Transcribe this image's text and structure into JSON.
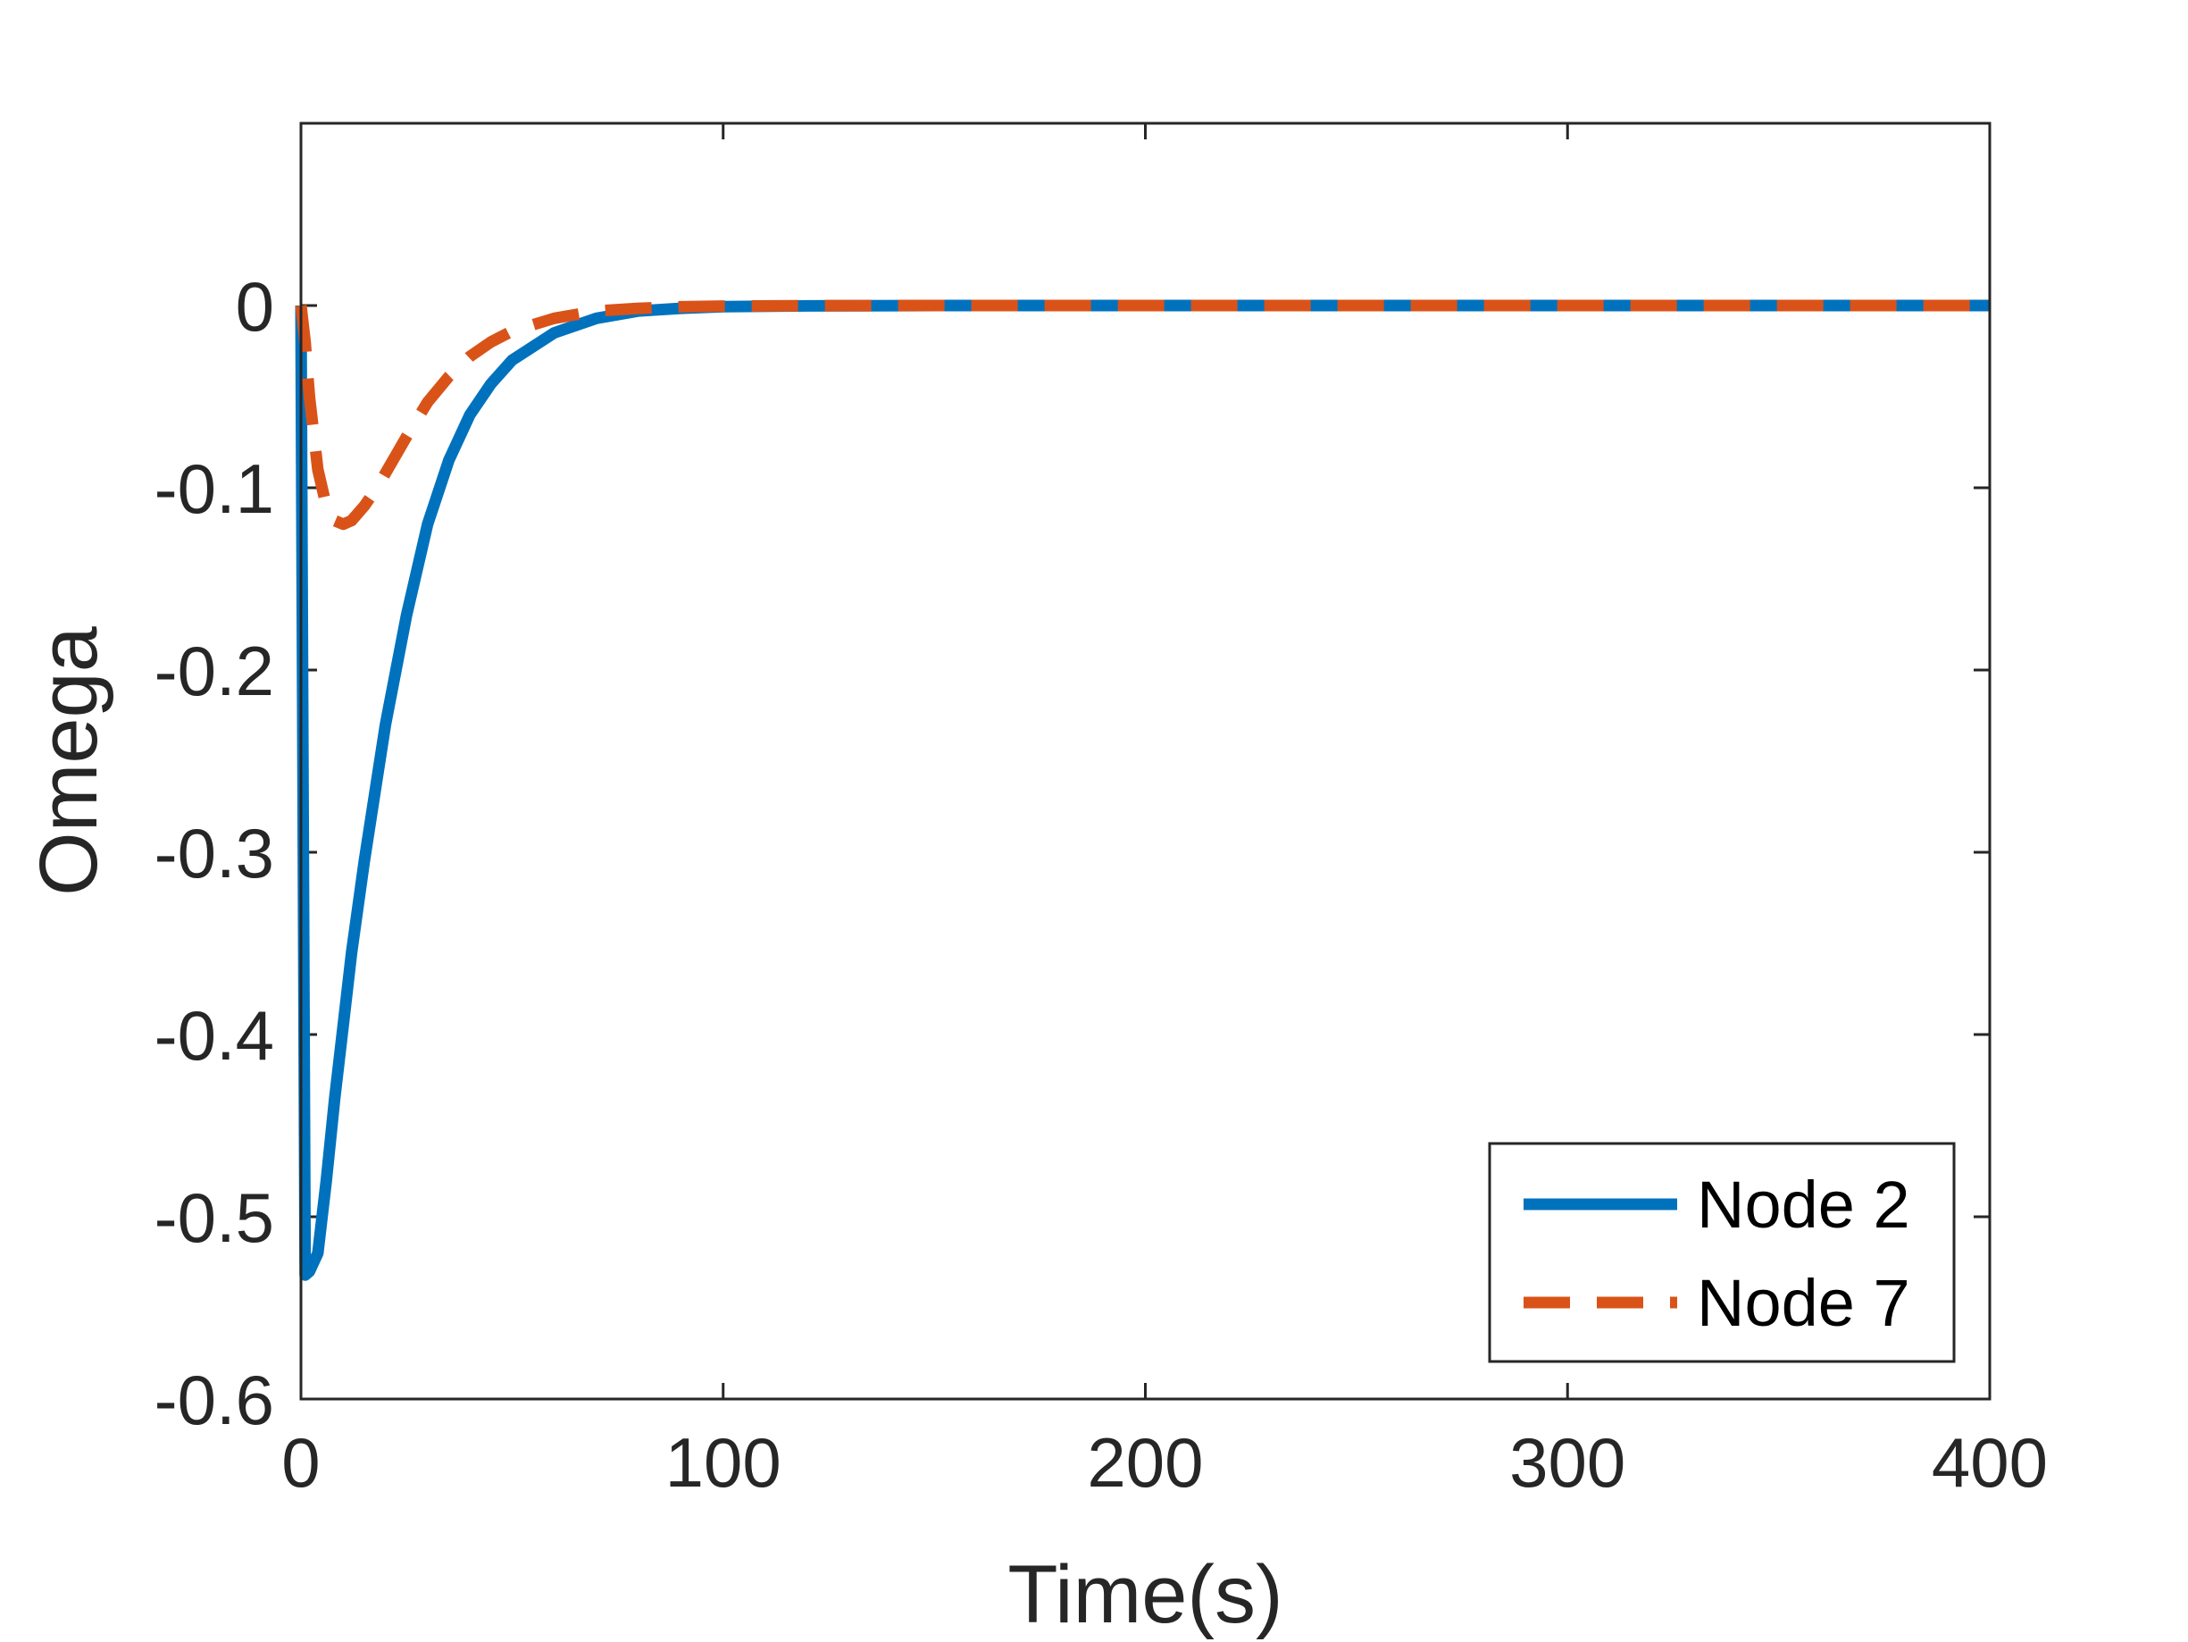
{
  "chart_data": {
    "type": "line",
    "title": "",
    "xlabel": "Time(s)",
    "ylabel": "Omega",
    "xlim": [
      0,
      400
    ],
    "ylim": [
      -0.6,
      0.1
    ],
    "x_ticks": [
      "0",
      "100",
      "200",
      "300",
      "400"
    ],
    "x_tick_values": [
      0,
      100,
      200,
      300,
      400
    ],
    "y_ticks": [
      "0",
      "-0.1",
      "-0.2",
      "-0.3",
      "-0.4",
      "-0.5",
      "-0.6"
    ],
    "y_tick_values": [
      0,
      -0.1,
      -0.2,
      -0.3,
      -0.4,
      -0.5,
      -0.6
    ],
    "grid": false,
    "legend_position": "bottom-right",
    "series": [
      {
        "name": "Node 2",
        "color": "#0072BD",
        "style": "solid",
        "x": [
          0,
          1,
          2,
          4,
          6,
          8,
          10,
          12,
          15,
          18,
          20,
          25,
          30,
          35,
          40,
          45,
          50,
          60,
          70,
          80,
          90,
          100,
          120,
          150,
          200,
          250,
          300,
          350,
          400
        ],
        "y": [
          0,
          -0.532,
          -0.53,
          -0.52,
          -0.48,
          -0.435,
          -0.395,
          -0.355,
          -0.305,
          -0.26,
          -0.23,
          -0.17,
          -0.12,
          -0.085,
          -0.06,
          -0.043,
          -0.03,
          -0.015,
          -0.007,
          -0.003,
          -0.0015,
          -0.0006,
          -0.0002,
          0,
          0,
          0,
          0,
          0,
          0
        ]
      },
      {
        "name": "Node 7",
        "color": "#D95319",
        "style": "dashed",
        "x": [
          0,
          1,
          2,
          4,
          6,
          8,
          10,
          12,
          15,
          18,
          20,
          25,
          30,
          35,
          40,
          45,
          50,
          60,
          70,
          80,
          90,
          100,
          120,
          150,
          200,
          250,
          300,
          350,
          400
        ],
        "y": [
          0,
          -0.02,
          -0.05,
          -0.09,
          -0.11,
          -0.118,
          -0.12,
          -0.118,
          -0.11,
          -0.1,
          -0.092,
          -0.072,
          -0.053,
          -0.039,
          -0.028,
          -0.02,
          -0.014,
          -0.007,
          -0.003,
          -0.0015,
          -0.0007,
          -0.0003,
          -0.0001,
          0,
          0,
          0,
          0,
          0,
          0
        ]
      }
    ]
  }
}
